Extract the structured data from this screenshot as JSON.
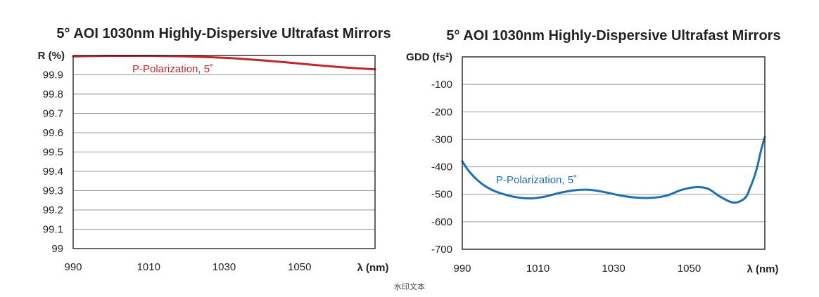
{
  "chart_data": [
    {
      "type": "line",
      "title": "5° AOI 1030nm Highly-Dispersive Ultrafast Mirrors",
      "xlabel": "λ (nm)",
      "ylabel": "R (%)",
      "xlim": [
        990,
        1070
      ],
      "ylim": [
        99,
        100
      ],
      "xticks": [
        990,
        1010,
        1030,
        1050
      ],
      "xtick_labels": [
        "990",
        "1010",
        "1030",
        "1050"
      ],
      "yticks": [
        99,
        99.1,
        99.2,
        99.3,
        99.4,
        99.5,
        99.6,
        99.7,
        99.8,
        99.9
      ],
      "ytick_labels": [
        "99",
        "99.1",
        "99.2",
        "99.3",
        "99.4",
        "99.5",
        "99.6",
        "99.7",
        "99.8",
        "99.9"
      ],
      "grid": true,
      "color": "#c0272d",
      "series": [
        {
          "name": "P-Polarization, 5˚",
          "x": [
            990,
            995,
            1000,
            1005,
            1010,
            1015,
            1020,
            1025,
            1030,
            1035,
            1040,
            1045,
            1050,
            1055,
            1060,
            1065,
            1070
          ],
          "y": [
            99.995,
            99.997,
            99.998,
            99.998,
            99.998,
            99.997,
            99.995,
            99.992,
            99.988,
            99.982,
            99.975,
            99.967,
            99.958,
            99.949,
            99.941,
            99.934,
            99.928
          ]
        }
      ]
    },
    {
      "type": "line",
      "title": "5° AOI 1030nm Highly-Dispersive Ultrafast Mirrors",
      "xlabel": "λ (nm)",
      "ylabel": "GDD (fs²)",
      "xlim": [
        990,
        1070
      ],
      "ylim": [
        -700,
        0
      ],
      "xticks": [
        990,
        1010,
        1030,
        1050
      ],
      "xtick_labels": [
        "990",
        "1010",
        "1030",
        "1050"
      ],
      "yticks": [
        -100,
        -200,
        -300,
        -400,
        -500,
        -600,
        -700
      ],
      "ytick_labels": [
        "-100",
        "-200",
        "-300",
        "-400",
        "-500",
        "-600",
        "-700"
      ],
      "grid": true,
      "color": "#1f6fb3",
      "series": [
        {
          "name": "P-Polarization, 5˚",
          "x": [
            990,
            992,
            995,
            998,
            1001,
            1004,
            1008,
            1012,
            1016,
            1020,
            1024,
            1028,
            1032,
            1036,
            1040,
            1044,
            1048,
            1052,
            1055,
            1058,
            1061,
            1063,
            1065,
            1066,
            1067,
            1068,
            1069,
            1070
          ],
          "y": [
            -380,
            -420,
            -460,
            -485,
            -500,
            -510,
            -515,
            -508,
            -494,
            -485,
            -484,
            -493,
            -505,
            -512,
            -513,
            -505,
            -484,
            -474,
            -480,
            -507,
            -528,
            -528,
            -510,
            -480,
            -445,
            -400,
            -340,
            -292
          ]
        }
      ]
    }
  ],
  "watermark": "水印文本"
}
